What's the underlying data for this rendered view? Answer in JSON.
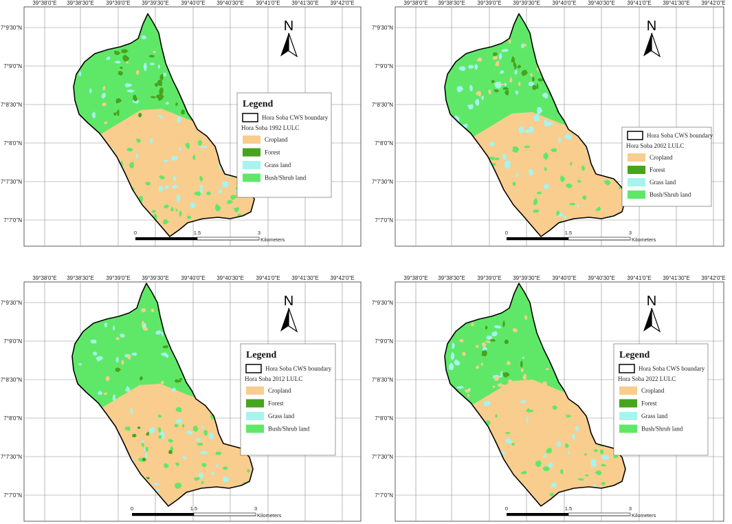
{
  "colors": {
    "cropland": "#f8cd8e",
    "forest": "#47a41c",
    "grass": "#a6f4ee",
    "bush": "#5fe868",
    "boundary": "#000000",
    "grid": "#8a8a8a"
  },
  "lon_labels": [
    "39°38'0\"E",
    "39°38'30\"E",
    "39°39'0\"E",
    "39°39'30\"E",
    "39°40'0\"E",
    "39°40'30\"E",
    "39°41'0\"E",
    "39°41'30\"E",
    "39°42'0\"E"
  ],
  "lat_labels": [
    "7°9'30\"N",
    "7°9'0\"N",
    "7°8'30\"N",
    "7°8'0\"N",
    "7°7'30\"N",
    "7°7'0\"N"
  ],
  "north_label": "N",
  "scale": {
    "labels": [
      "0",
      "1.5",
      "3"
    ],
    "unit": "Kilometers"
  },
  "panels": [
    {
      "legend": {
        "title": "Legend",
        "boundary_label": "Hora Soba CWS boundary",
        "layer_label": "Hora Soba 1992 LULC",
        "classes": [
          "Cropland",
          "Forest",
          "Grass land",
          "Bush/Shrub land"
        ]
      }
    },
    {
      "legend": {
        "title": "",
        "boundary_label": "Hora Soba CWS boundary",
        "layer_label": "Hora Soba 2002 LULC",
        "classes": [
          "Cropland",
          "Forest",
          "Grass land",
          "Bush/Shrub land"
        ]
      }
    },
    {
      "legend": {
        "title": "Legend",
        "boundary_label": "Hora Soba CWS boundary",
        "layer_label": "Hora Soba 2012 LULC",
        "classes": [
          "Cropland",
          "Forest",
          "Grass land",
          "Bush/Shrub land"
        ]
      }
    },
    {
      "legend": {
        "title": "Legend",
        "boundary_label": "Hora Soba CWS boundary",
        "layer_label": "Hora Soba 2022 LULC",
        "classes": [
          "Cropland",
          "Forest",
          "Grass land",
          "Bush/Shrub land"
        ]
      }
    }
  ]
}
